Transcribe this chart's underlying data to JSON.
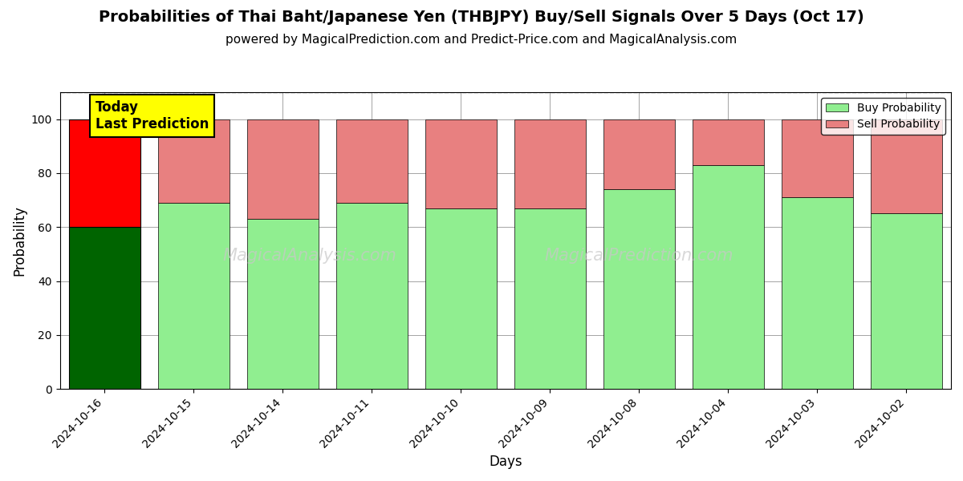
{
  "title": "Probabilities of Thai Baht/Japanese Yen (THBJPY) Buy/Sell Signals Over 5 Days (Oct 17)",
  "subtitle": "powered by MagicalPrediction.com and Predict-Price.com and MagicalAnalysis.com",
  "xlabel": "Days",
  "ylabel": "Probability",
  "categories": [
    "2024-10-16",
    "2024-10-15",
    "2024-10-14",
    "2024-10-11",
    "2024-10-10",
    "2024-10-09",
    "2024-10-08",
    "2024-10-04",
    "2024-10-03",
    "2024-10-02"
  ],
  "buy_values": [
    60,
    69,
    63,
    69,
    67,
    67,
    74,
    83,
    71,
    65
  ],
  "sell_values": [
    40,
    31,
    37,
    31,
    33,
    33,
    26,
    17,
    29,
    35
  ],
  "today_buy_color": "#006400",
  "today_sell_color": "#FF0000",
  "buy_color": "#90EE90",
  "sell_color": "#E88080",
  "today_annotation_bg": "#FFFF00",
  "today_annotation_text": "Today\nLast Prediction",
  "ylim": [
    0,
    110
  ],
  "dashed_line_y": 110,
  "watermark_left": "MagicalAnalysis.com",
  "watermark_right": "MagicalPrediction.com",
  "title_fontsize": 14,
  "subtitle_fontsize": 11,
  "legend_buy_label": "Buy Probability",
  "legend_sell_label": "Sell Probability"
}
